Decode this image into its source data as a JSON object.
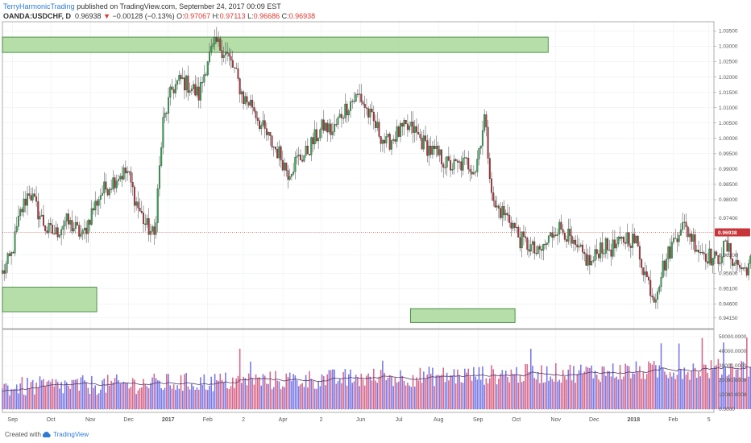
{
  "header": {
    "author": "TerryHarmonicTrading",
    "published_on": " published on TradingView.com, September 24, 2017 00:09 EST",
    "symbol": "OANDA:USDCHF, D",
    "last": "0.96938",
    "change": "−0.00128 (−0.13%)",
    "o_label": "O:",
    "o_value": "0.97067",
    "h_label": "H:",
    "h_value": "0.97113",
    "l_label": "L:",
    "l_value": "0.96686",
    "c_label": "C:",
    "c_value": "0.96938"
  },
  "footer": {
    "created_with": "Created with",
    "brand": "TradingView"
  },
  "colors": {
    "up": "#34a853",
    "down": "#b5323a",
    "zone_fill": "#a8d89a",
    "zone_stroke": "#2f7a2a",
    "vol_up": "#7a7ae8",
    "vol_down": "#d86a8c",
    "price_tag": "#c7353a",
    "ma": "#553a6b"
  },
  "chart_data": [
    {
      "type": "candlestick",
      "title": "OANDA:USDCHF, D",
      "y_axis_position": "right",
      "price_ylim": [
        0.938,
        1.038
      ],
      "price_ticks": [
        "1.03500",
        "1.03000",
        "1.02500",
        "1.02000",
        "1.01500",
        "1.01000",
        "1.00500",
        "1.00000",
        "0.99500",
        "0.99000",
        "0.98500",
        "0.98000",
        "0.97400",
        "0.96938",
        "0.96200",
        "0.95600",
        "0.95100",
        "0.94600",
        "0.94150"
      ],
      "last_price_label": "0.96938",
      "x_labels": [
        "Sep",
        "Oct",
        "Nov",
        "Dec",
        "2017",
        "Feb",
        "2",
        "Apr",
        "2",
        "Jun",
        "Jul",
        "Aug",
        "Sep",
        "Oct",
        "Nov",
        "Dec",
        "2018",
        "Feb",
        "5"
      ],
      "x_range": [
        "2016-08-24",
        "2018-03-05"
      ],
      "x_label_dates": [
        "2016-09-01",
        "2016-10-01",
        "2016-11-01",
        "2016-12-01",
        "2017-01-01",
        "2017-02-01",
        "2017-03-01",
        "2017-04-01",
        "2017-05-01",
        "2017-06-01",
        "2017-07-01",
        "2017-08-01",
        "2017-09-01",
        "2017-10-01",
        "2017-11-01",
        "2017-12-01",
        "2018-01-01",
        "2018-02-01",
        "2018-03-01"
      ],
      "zones": [
        {
          "from": "2016-08-24",
          "to": "2017-10-26",
          "low": 1.028,
          "high": 1.033
        },
        {
          "from": "2016-08-24",
          "to": "2016-11-06",
          "low": 0.9435,
          "high": 0.9515
        },
        {
          "from": "2017-07-10",
          "to": "2017-09-30",
          "low": 0.94,
          "high": 0.9445
        }
      ],
      "closes": [
        0.956,
        0.9618,
        0.9755,
        0.983,
        0.976,
        0.97,
        0.969,
        0.973,
        0.971,
        0.968,
        0.976,
        0.982,
        0.985,
        0.988,
        0.989,
        0.979,
        0.972,
        0.968,
        1.005,
        1.016,
        1.019,
        1.017,
        1.014,
        1.026,
        1.031,
        1.028,
        1.022,
        1.013,
        1.011,
        1.004,
        0.999,
        0.995,
        0.989,
        0.993,
        0.995,
        1.0,
        1.004,
        1.002,
        1.008,
        1.012,
        1.014,
        1.008,
        1.003,
        0.998,
        1.001,
        1.003,
        1.003,
        0.999,
        0.996,
        0.994,
        0.991,
        0.991,
        0.992,
        0.99,
        1.007,
        0.978,
        0.976,
        0.973,
        0.967,
        0.965,
        0.962,
        0.966,
        0.971,
        0.97,
        0.964,
        0.962,
        0.959,
        0.965,
        0.964,
        0.965,
        0.968,
        0.966,
        0.956,
        0.948,
        0.958,
        0.965,
        0.972,
        0.969,
        0.964,
        0.962,
        0.96,
        0.965,
        0.96,
        0.957,
        0.96,
        0.946,
        0.956,
        0.962,
        0.9694
      ],
      "closes_note_dates_from": "2016-08-24",
      "closes_step_days": 7,
      "volume_ylim": [
        0,
        55000
      ],
      "volume_ticks": [
        "50000.0000",
        "40000.0000",
        "30000.0000",
        "20000.0000",
        "10000.0000",
        "0.0000"
      ],
      "volume_ma_last": 30000
    }
  ]
}
